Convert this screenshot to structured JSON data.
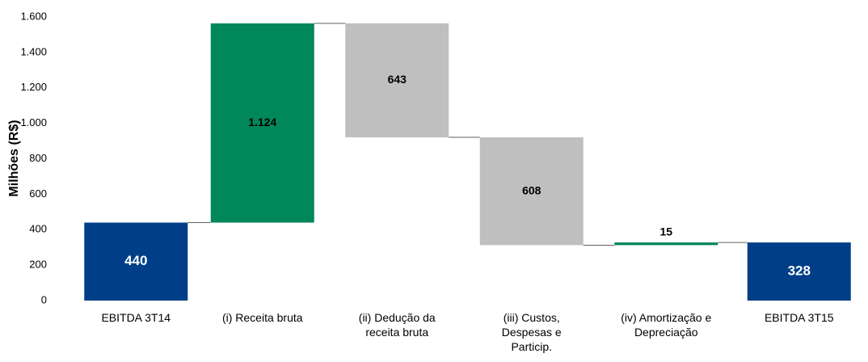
{
  "chart_data": {
    "type": "waterfall",
    "y_label": "Milhões (R$)",
    "categories": [
      "EBITDA 3T14",
      "(i) Receita bruta",
      "(ii) Dedução da receita bruta",
      "(iii) Custos, Despesas e Particip.",
      "(iv) Amortização e Depreciação",
      "EBITDA 3T15"
    ],
    "kinds": [
      "total",
      "increase",
      "decrease",
      "decrease",
      "increase",
      "total"
    ],
    "values": [
      440,
      1124,
      -643,
      -608,
      15,
      328
    ],
    "value_labels": [
      "440",
      "1.124",
      "643",
      "608",
      "15",
      "328"
    ],
    "colors": {
      "total": "#003f87",
      "increase": "#00875a",
      "decrease": "#bfbfbf"
    },
    "ylim": [
      0,
      1600
    ],
    "yticks": [
      0,
      200,
      400,
      600,
      800,
      {
        "value": 1000,
        "label": "1.000"
      },
      {
        "value": 1200,
        "label": "1.200"
      },
      {
        "value": 1400,
        "label": "1.400"
      },
      {
        "value": 1600,
        "label": "1.600"
      }
    ],
    "grid": false
  }
}
